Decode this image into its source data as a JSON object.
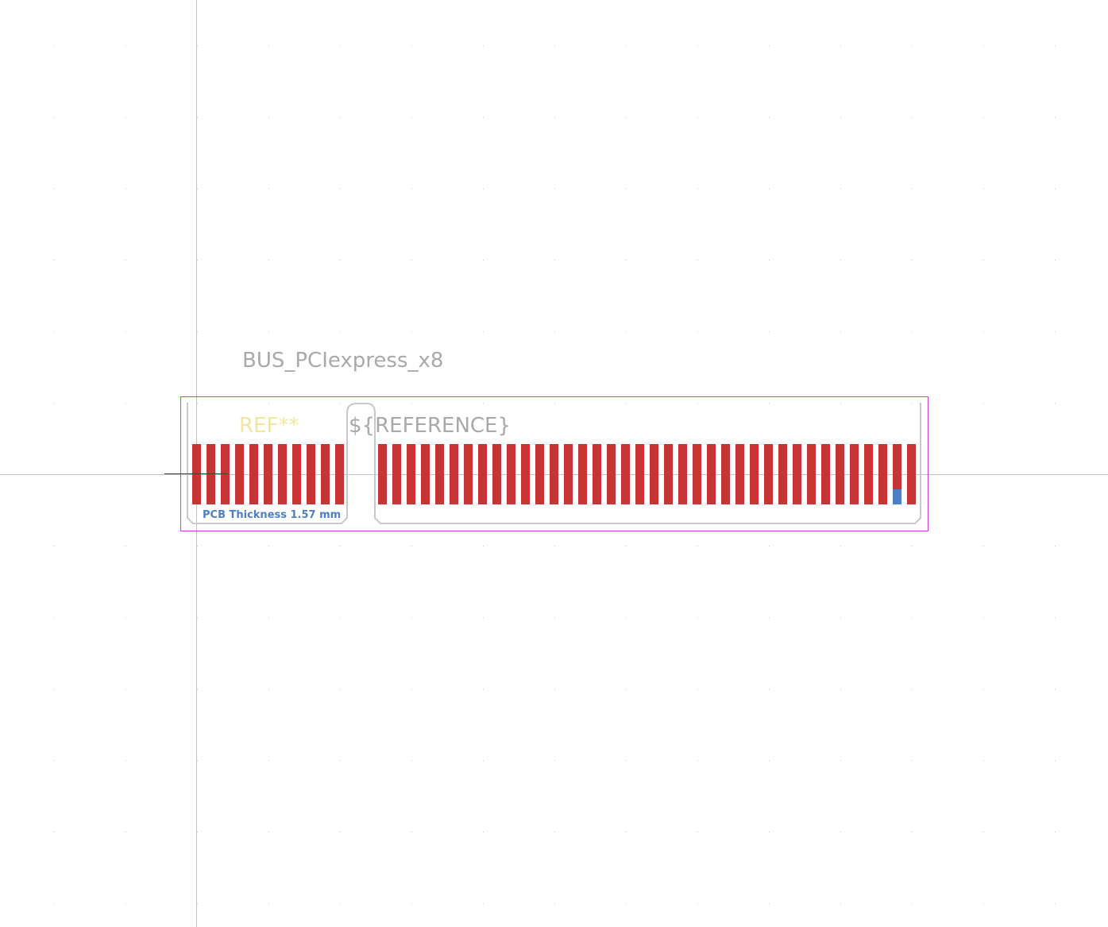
{
  "footprint": {
    "value_label": "BUS_PCIexpress_x8",
    "reference_label": "REF**",
    "reference_field": "${REFERENCE}",
    "fab_note": "PCB Thickness 1.57 mm"
  },
  "pads": {
    "left_group_count": 11,
    "right_group_count": 38,
    "highlighted_pad": "right-37"
  },
  "colors": {
    "background": "#ffffff",
    "grid_dot": "#c8c8c8",
    "axis_line": "#c0c0cc",
    "copper_pad": "#c83434",
    "selected_pad": "#4d7fc4",
    "courtyard": "#d23cd2",
    "edge_outline": "#c8c8c8",
    "reference_text": "#f0e6a0",
    "value_text": "#a9a9a9",
    "fab_text": "#4d7fc4"
  }
}
